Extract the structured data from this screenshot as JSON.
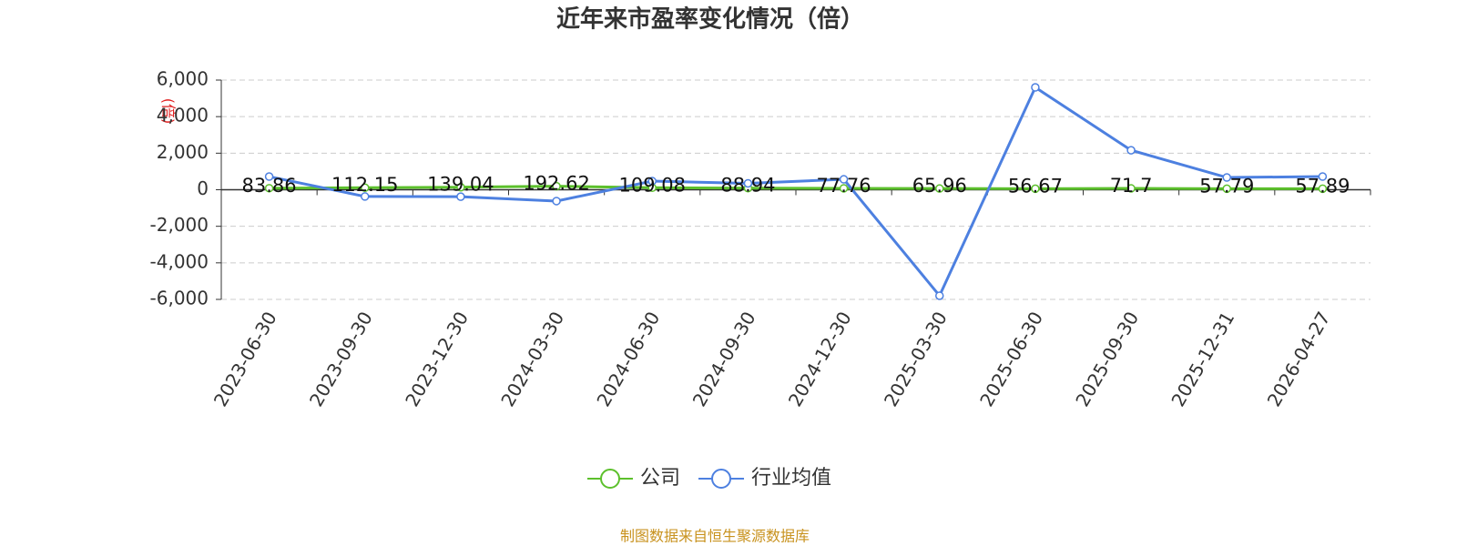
{
  "chart_data": {
    "type": "line",
    "title": "近年来市盈率变化情况（倍）",
    "y_label": "(倍)",
    "categories": [
      "2023-06-30",
      "2023-09-30",
      "2023-12-30",
      "2024-03-30",
      "2024-06-30",
      "2024-09-30",
      "2024-12-30",
      "2025-03-30",
      "2025-06-30",
      "2025-09-30",
      "2025-12-31",
      "2026-04-27"
    ],
    "series": [
      {
        "name": "公司",
        "color": "#5cc02c",
        "values": [
          83.86,
          112.15,
          139.04,
          192.62,
          109.08,
          88.94,
          77.76,
          65.96,
          56.67,
          71.7,
          57.79,
          57.89
        ],
        "show_labels": true
      },
      {
        "name": "行业均值",
        "color": "#4d80e0",
        "values": [
          720,
          -370,
          -380,
          -620,
          470,
          350,
          570,
          -5800,
          5600,
          2160,
          670,
          720
        ],
        "show_labels": false
      }
    ],
    "ylim": [
      -6000,
      6000
    ],
    "yticks": [
      {
        "value": -6000,
        "label": "-6,000"
      },
      {
        "value": -4000,
        "label": "-4,000"
      },
      {
        "value": -2000,
        "label": "-2,000"
      },
      0,
      {
        "value": 2000,
        "label": "2,000"
      },
      {
        "value": 4000,
        "label": "4,000"
      },
      {
        "value": 6000,
        "label": "6,000"
      }
    ],
    "grid": true,
    "legend": "bottom",
    "source": "制图数据来自恒生聚源数据库"
  }
}
